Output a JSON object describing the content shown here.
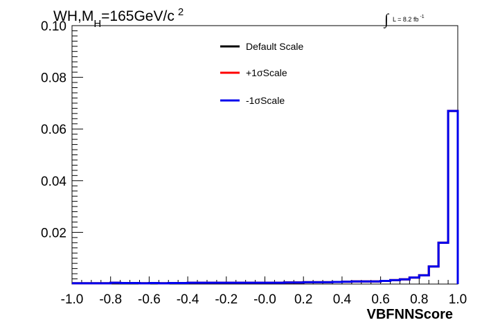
{
  "chart_data": {
    "type": "line",
    "title": {
      "base": "WH,M",
      "subscript": "H",
      "rest": "=165GeV/c",
      "superscript": "2"
    },
    "luminosity": {
      "symbol": "∫",
      "text": "L = 8.2 fb",
      "superscript": "-1"
    },
    "xlabel": "VBFNNScore",
    "ylabel": "",
    "xlim": [
      -1.0,
      1.0
    ],
    "ylim": [
      0,
      0.1
    ],
    "x_ticks": [
      "-1.0",
      "-0.8",
      "-0.6",
      "-0.4",
      "-0.2",
      "-0.0",
      "0.2",
      "0.4",
      "0.6",
      "0.8",
      "1.0"
    ],
    "y_ticks": [
      "0.02",
      "0.04",
      "0.06",
      "0.08",
      "0.10"
    ],
    "bin_edges": [
      -1.0,
      -0.95,
      -0.9,
      -0.85,
      -0.8,
      -0.75,
      -0.7,
      -0.65,
      -0.6,
      -0.55,
      -0.5,
      -0.45,
      -0.4,
      -0.35,
      -0.3,
      -0.25,
      -0.2,
      -0.15,
      -0.1,
      -0.05,
      0.0,
      0.05,
      0.1,
      0.15,
      0.2,
      0.25,
      0.3,
      0.35,
      0.4,
      0.45,
      0.5,
      0.55,
      0.6,
      0.65,
      0.7,
      0.75,
      0.8,
      0.85,
      0.9,
      0.95,
      1.0
    ],
    "series": [
      {
        "name": "Default Scale",
        "color": "#000000",
        "values": [
          0.0003,
          0.0003,
          0.0003,
          0.0003,
          0.0005,
          0.0004,
          0.0004,
          0.0003,
          0.0004,
          0.0003,
          0.0004,
          0.0004,
          0.0005,
          0.0005,
          0.0005,
          0.0005,
          0.0005,
          0.0005,
          0.0005,
          0.0005,
          0.0005,
          0.0005,
          0.0006,
          0.0006,
          0.0007,
          0.0007,
          0.0007,
          0.0008,
          0.0009,
          0.001,
          0.001,
          0.001,
          0.0012,
          0.0015,
          0.0018,
          0.0025,
          0.0034,
          0.0068,
          0.016,
          0.067
        ]
      },
      {
        "name": "+1σScale",
        "color": "#ff0000",
        "values": [
          0.0003,
          0.0003,
          0.0003,
          0.0003,
          0.0005,
          0.0004,
          0.0004,
          0.0003,
          0.0004,
          0.0003,
          0.0004,
          0.0004,
          0.0005,
          0.0005,
          0.0005,
          0.0005,
          0.0005,
          0.0005,
          0.0005,
          0.0005,
          0.0005,
          0.0005,
          0.0006,
          0.0006,
          0.0007,
          0.0007,
          0.0007,
          0.0008,
          0.0009,
          0.001,
          0.001,
          0.001,
          0.0012,
          0.0015,
          0.0018,
          0.0025,
          0.0034,
          0.0068,
          0.016,
          0.067
        ]
      },
      {
        "name": "-1σScale",
        "color": "#0000ee",
        "values": [
          0.0003,
          0.0003,
          0.0003,
          0.0003,
          0.0005,
          0.0004,
          0.0004,
          0.0003,
          0.0004,
          0.0003,
          0.0004,
          0.0004,
          0.0005,
          0.0005,
          0.0005,
          0.0005,
          0.0005,
          0.0005,
          0.0005,
          0.0005,
          0.0005,
          0.0005,
          0.0006,
          0.0006,
          0.0007,
          0.0007,
          0.0007,
          0.0008,
          0.0009,
          0.001,
          0.001,
          0.001,
          0.0012,
          0.0015,
          0.0018,
          0.0025,
          0.0034,
          0.0068,
          0.016,
          0.067
        ]
      }
    ],
    "legend_position": "top-center",
    "grid": false
  }
}
